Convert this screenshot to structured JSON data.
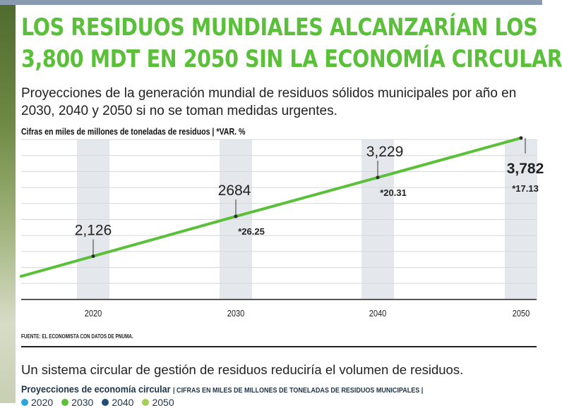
{
  "title": {
    "line1": "LOS RESIDUOS MUNDIALES ALCANZARÍAN LOS",
    "line2": "3,800 MDT EN 2050 SIN LA ECONOMÍA CIRCULAR"
  },
  "subtitle": "Proyecciones de la generación mundial de residuos sólidos municipales por año en 2030, 2040 y 2050 si no se toman medidas urgentes.",
  "units_label": "Cifras en miles de millones de toneladas de residuos | *VAR. %",
  "source": "FUENTE: EL ECONOMISTA CON DATOS DE PNUMA.",
  "bottom": {
    "text": "Un sistema circular de gestión de residuos reduciría el volumen de residuos.",
    "sub_bold": "Proyecciones de economía circular",
    "sub_small": "| CIFRAS EN MILES DE MILLONES DE TONELADAS DE RESIDUOS MUNICIPALES |"
  },
  "legend": [
    {
      "label": "2020",
      "color": "#2aa6df"
    },
    {
      "label": "2030",
      "color": "#5bc039"
    },
    {
      "label": "2040",
      "color": "#1f4e79"
    },
    {
      "label": "2050",
      "color": "#a5cf5a"
    }
  ],
  "colors": {
    "accent": "#5bc039",
    "band": "#e4e8ec"
  },
  "chart_data": {
    "type": "line",
    "x": [
      "2020",
      "2030",
      "2040",
      "2050"
    ],
    "values": [
      2126,
      2684,
      3229,
      3782
    ],
    "value_labels": [
      "2,126",
      "2684",
      "3,229",
      "3,782"
    ],
    "var_labels": [
      "",
      "*26.25",
      "*20.31",
      "*17.13"
    ],
    "grid": true
  }
}
